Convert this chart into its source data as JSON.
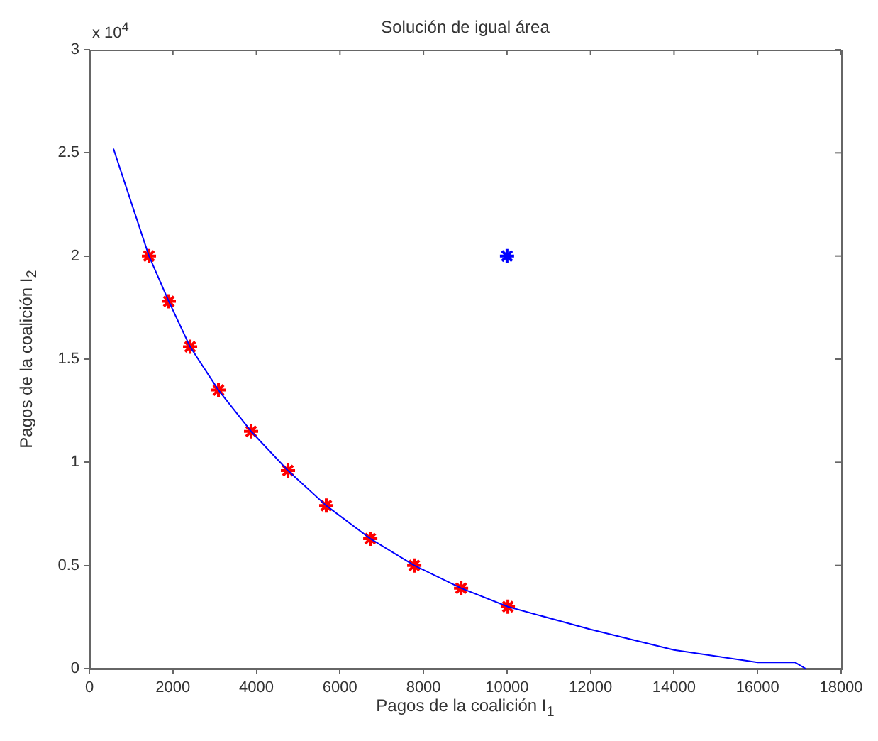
{
  "chart_data": {
    "type": "line",
    "title": "Solución de igual área",
    "xlabel": "Pagos de la coalición I$_{1}$",
    "ylabel": "Pagos de la coalición I$_{2}$",
    "annotations": [
      "x 10$^{4}$"
    ],
    "xlim": [
      0,
      18000
    ],
    "xticks": [
      0,
      2000,
      4000,
      6000,
      8000,
      10000,
      12000,
      14000,
      16000,
      18000
    ],
    "ylim": [
      0,
      3
    ],
    "yticks": [
      0,
      0.5,
      1,
      1.5,
      2,
      2.5,
      3
    ],
    "grid": false,
    "legend": false,
    "line_style": "solid",
    "series": [
      {
        "color": "#0000ff",
        "marker": "none",
        "x": [
          577,
          1427,
          1902,
          2412,
          3091,
          3872,
          4755,
          5672,
          6726,
          7779,
          8900,
          10020,
          12000,
          14000,
          16000,
          16900,
          17150
        ],
        "values": [
          2.52,
          2.0,
          1.78,
          1.56,
          1.35,
          1.15,
          0.96,
          0.79,
          0.63,
          0.5,
          0.39,
          0.3,
          0.19,
          0.09,
          0.03,
          0.03,
          0
        ]
      },
      {
        "type": "scatter",
        "color": "#ff0000",
        "marker": "cross",
        "x": [
          1427,
          1902,
          2412,
          3091,
          3872,
          4755,
          5672,
          6726,
          7779,
          8900,
          10020
        ],
        "values": [
          2.0,
          1.78,
          1.56,
          1.35,
          1.15,
          0.96,
          0.79,
          0.63,
          0.5,
          0.39,
          0.3
        ]
      },
      {
        "type": "scatter",
        "color": "#0000ff",
        "marker": "cross",
        "x": [
          10000
        ],
        "values": [
          2.0
        ]
      }
    ]
  }
}
